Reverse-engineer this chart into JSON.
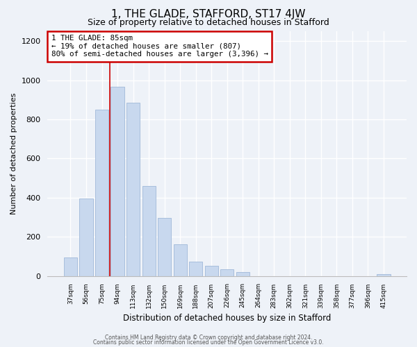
{
  "title": "1, THE GLADE, STAFFORD, ST17 4JW",
  "subtitle": "Size of property relative to detached houses in Stafford",
  "xlabel": "Distribution of detached houses by size in Stafford",
  "ylabel": "Number of detached properties",
  "bar_labels": [
    "37sqm",
    "56sqm",
    "75sqm",
    "94sqm",
    "113sqm",
    "132sqm",
    "150sqm",
    "169sqm",
    "188sqm",
    "207sqm",
    "226sqm",
    "245sqm",
    "264sqm",
    "283sqm",
    "302sqm",
    "321sqm",
    "339sqm",
    "358sqm",
    "377sqm",
    "396sqm",
    "415sqm"
  ],
  "bar_values": [
    95,
    395,
    850,
    965,
    885,
    460,
    298,
    160,
    72,
    52,
    35,
    20,
    0,
    0,
    0,
    0,
    0,
    0,
    0,
    0,
    8
  ],
  "bar_color": "#c8d8ee",
  "bar_edge_color": "#a0b8d8",
  "annotation_line1": "1 THE GLADE: 85sqm",
  "annotation_line2": "← 19% of detached houses are smaller (807)",
  "annotation_line3": "80% of semi-detached houses are larger (3,396) →",
  "annotation_box_edge": "#cc0000",
  "vline_x": 2.5,
  "vline_color": "#cc0000",
  "ylim": [
    0,
    1250
  ],
  "yticks": [
    0,
    200,
    400,
    600,
    800,
    1000,
    1200
  ],
  "footer_line1": "Contains HM Land Registry data © Crown copyright and database right 2024.",
  "footer_line2": "Contains public sector information licensed under the Open Government Licence v3.0.",
  "bg_color": "#eef2f8",
  "plot_bg_color": "#eef2f8",
  "grid_color": "#ffffff"
}
